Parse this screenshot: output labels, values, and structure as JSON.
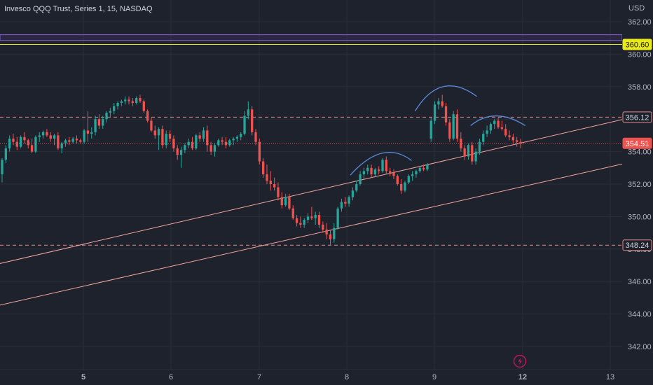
{
  "header": {
    "title": "Invesco QQQ Trust, Series 1, 15, NASDAQ"
  },
  "price_axis": {
    "currency": "USD",
    "ticks": [
      "362.00",
      "360.00",
      "358.00",
      "356.00",
      "354.00",
      "352.00",
      "350.00",
      "348.00",
      "346.00",
      "344.00",
      "342.00"
    ]
  },
  "time_axis": {
    "ticks": [
      "5",
      "6",
      "7",
      "8",
      "9",
      "12",
      "13"
    ]
  },
  "markers": {
    "resistance_label": "360.60",
    "level_upper_label": "356.12",
    "last_price_label": "354.51",
    "level_lower_label": "348.24"
  },
  "colors": {
    "background": "#1e222d",
    "grid": "#2a2e39",
    "up": "#26a69a",
    "down": "#ef5350",
    "channel": "#f4a6a0",
    "dashed_level": "#e58a86",
    "resistance": "#e8e81a",
    "zone": "#7e57c2",
    "arc": "#5b8bd9"
  },
  "icons": {
    "replay": "lightning-icon"
  },
  "chart_data": {
    "type": "candlestick",
    "title": "Invesco QQQ Trust, Series 1, 15, NASDAQ",
    "ylabel": "USD",
    "ylim": [
      341.2,
      363.2
    ],
    "x_ticks": [
      "5",
      "6",
      "7",
      "8",
      "9",
      "12",
      "13"
    ],
    "y_ticks": [
      362,
      360,
      358,
      356,
      354,
      352,
      350,
      348,
      346,
      344,
      342
    ],
    "levels": [
      {
        "kind": "resistance",
        "value": 360.6,
        "style": "solid"
      },
      {
        "kind": "level",
        "value": 356.12,
        "style": "dashed"
      },
      {
        "kind": "last_price",
        "value": 354.51,
        "style": "dotted"
      },
      {
        "kind": "level",
        "value": 348.24,
        "style": "dashed"
      }
    ],
    "zone": {
      "from": 360.85,
      "to": 361.2
    },
    "channel_lines": [
      {
        "start": {
          "time": 3.93,
          "value": 346.96
        },
        "end": {
          "time": 12.95,
          "value": 358.24
        }
      },
      {
        "start": {
          "time": 3.93,
          "value": 344.4
        },
        "end": {
          "time": 12.95,
          "value": 355.46
        }
      }
    ],
    "arcs": [
      {
        "from": {
          "time": 8.04,
          "value": 352.55
        },
        "peak": {
          "time": 8.4,
          "value": 353.9
        },
        "to": {
          "time": 8.74,
          "value": 353.45
        }
      },
      {
        "from": {
          "time": 8.78,
          "value": 356.5
        },
        "peak": {
          "time": 9.1,
          "value": 358.0
        },
        "to": {
          "time": 9.48,
          "value": 357.4
        }
      },
      {
        "from": {
          "time": 9.41,
          "value": 355.6
        },
        "peak": {
          "time": 9.7,
          "value": 356.2
        },
        "to": {
          "time": 10.03,
          "value": 355.6
        }
      }
    ],
    "candles": [
      [
        352.6,
        353.6,
        352.1,
        353.5
      ],
      [
        353.5,
        354.4,
        353.3,
        354.2
      ],
      [
        354.2,
        355.0,
        354.0,
        354.8
      ],
      [
        354.8,
        355.1,
        354.4,
        354.6
      ],
      [
        354.6,
        354.9,
        354.1,
        354.3
      ],
      [
        354.3,
        355.0,
        354.2,
        354.9
      ],
      [
        354.9,
        355.2,
        354.5,
        354.7
      ],
      [
        354.7,
        354.8,
        354.2,
        354.4
      ],
      [
        354.4,
        354.8,
        353.9,
        354.0
      ],
      [
        354.0,
        355.0,
        353.9,
        354.9
      ],
      [
        354.9,
        355.2,
        354.6,
        355.0
      ],
      [
        355.0,
        355.3,
        354.8,
        355.2
      ],
      [
        355.2,
        355.4,
        354.9,
        355.0
      ],
      [
        355.0,
        355.2,
        354.6,
        354.8
      ],
      [
        354.8,
        355.1,
        354.4,
        355.0
      ],
      [
        355.0,
        355.2,
        354.1,
        354.2
      ],
      [
        354.2,
        354.6,
        353.9,
        354.5
      ],
      [
        354.5,
        354.8,
        354.3,
        354.7
      ],
      [
        354.7,
        354.9,
        354.4,
        354.6
      ],
      [
        354.6,
        354.9,
        354.5,
        354.8
      ],
      [
        354.8,
        355.0,
        354.5,
        354.7
      ],
      [
        354.7,
        354.8,
        354.5,
        354.6
      ],
      [
        354.6,
        355.4,
        354.5,
        355.3
      ],
      [
        355.3,
        356.5,
        354.6,
        355.1
      ],
      [
        355.1,
        355.5,
        354.8,
        355.2
      ],
      [
        355.2,
        356.2,
        355.0,
        356.0
      ],
      [
        356.0,
        356.3,
        355.4,
        355.6
      ],
      [
        355.6,
        356.2,
        355.4,
        356.0
      ],
      [
        356.0,
        356.5,
        355.8,
        356.4
      ],
      [
        356.4,
        356.7,
        356.1,
        356.5
      ],
      [
        356.5,
        357.0,
        356.3,
        356.8
      ],
      [
        356.8,
        357.1,
        356.6,
        357.0
      ],
      [
        357.0,
        357.2,
        356.8,
        357.1
      ],
      [
        357.1,
        357.4,
        356.9,
        357.2
      ],
      [
        357.2,
        357.4,
        356.9,
        357.1
      ],
      [
        357.1,
        357.3,
        356.8,
        357.0
      ],
      [
        357.0,
        357.4,
        356.9,
        357.3
      ],
      [
        357.3,
        357.5,
        357.0,
        357.1
      ],
      [
        357.1,
        357.2,
        356.4,
        356.5
      ],
      [
        356.5,
        356.6,
        355.8,
        355.9
      ],
      [
        355.9,
        356.1,
        355.2,
        355.3
      ],
      [
        355.3,
        355.6,
        354.8,
        355.0
      ],
      [
        355.0,
        355.5,
        354.1,
        355.4
      ],
      [
        355.4,
        355.6,
        354.2,
        354.4
      ],
      [
        354.4,
        355.3,
        354.2,
        355.1
      ],
      [
        355.1,
        355.3,
        354.6,
        354.8
      ],
      [
        354.8,
        355.0,
        354.0,
        354.2
      ],
      [
        354.2,
        354.4,
        353.5,
        353.8
      ],
      [
        353.8,
        354.3,
        353.0,
        354.1
      ],
      [
        354.1,
        354.5,
        353.9,
        354.4
      ],
      [
        354.4,
        354.8,
        354.2,
        354.6
      ],
      [
        354.6,
        354.9,
        354.1,
        354.2
      ],
      [
        354.2,
        355.1,
        354.1,
        355.0
      ],
      [
        355.0,
        355.2,
        354.6,
        354.8
      ],
      [
        354.8,
        355.5,
        354.6,
        355.3
      ],
      [
        355.3,
        355.6,
        354.0,
        354.4
      ],
      [
        354.4,
        354.6,
        353.8,
        354.0
      ],
      [
        354.0,
        354.5,
        353.7,
        354.4
      ],
      [
        354.4,
        354.8,
        354.3,
        354.7
      ],
      [
        354.7,
        354.9,
        354.4,
        354.6
      ],
      [
        354.6,
        354.9,
        354.2,
        354.4
      ],
      [
        354.4,
        354.8,
        354.3,
        354.7
      ],
      [
        354.7,
        354.9,
        354.4,
        354.8
      ],
      [
        354.8,
        355.0,
        354.6,
        354.9
      ],
      [
        354.9,
        355.2,
        354.7,
        355.1
      ],
      [
        355.1,
        356.5,
        355.0,
        356.2
      ],
      [
        356.2,
        357.1,
        356.0,
        356.6
      ],
      [
        356.6,
        356.8,
        355.0,
        355.2
      ],
      [
        355.2,
        355.4,
        354.4,
        354.6
      ],
      [
        354.6,
        354.8,
        353.2,
        353.4
      ],
      [
        353.4,
        353.6,
        352.4,
        352.6
      ],
      [
        352.6,
        353.2,
        352.0,
        352.2
      ],
      [
        352.2,
        352.8,
        351.6,
        352.0
      ],
      [
        352.0,
        352.4,
        351.6,
        351.8
      ],
      [
        351.8,
        352.1,
        351.0,
        351.2
      ],
      [
        351.2,
        351.5,
        350.5,
        350.7
      ],
      [
        350.7,
        351.4,
        350.6,
        351.2
      ],
      [
        351.2,
        351.4,
        350.4,
        350.5
      ],
      [
        350.5,
        350.7,
        349.8,
        349.9
      ],
      [
        349.9,
        350.1,
        349.4,
        349.6
      ],
      [
        349.6,
        350.0,
        349.3,
        349.5
      ],
      [
        349.5,
        349.9,
        349.3,
        349.8
      ],
      [
        349.8,
        350.2,
        349.6,
        350.0
      ],
      [
        350.0,
        350.6,
        349.8,
        349.9
      ],
      [
        349.9,
        350.3,
        349.5,
        350.1
      ],
      [
        350.1,
        350.3,
        349.3,
        349.5
      ],
      [
        349.5,
        349.7,
        349.0,
        349.2
      ],
      [
        349.2,
        349.6,
        348.6,
        348.9
      ],
      [
        348.9,
        349.2,
        348.2,
        348.6
      ],
      [
        348.6,
        349.6,
        348.4,
        349.3
      ],
      [
        349.3,
        350.6,
        349.2,
        350.5
      ],
      [
        350.5,
        351.1,
        350.3,
        350.9
      ],
      [
        350.9,
        351.2,
        350.6,
        350.8
      ],
      [
        350.8,
        351.3,
        350.6,
        351.2
      ],
      [
        351.2,
        351.8,
        351.0,
        351.6
      ],
      [
        351.6,
        352.2,
        351.5,
        352.0
      ],
      [
        352.0,
        352.8,
        351.9,
        352.6
      ],
      [
        352.6,
        353.0,
        352.3,
        352.8
      ],
      [
        352.8,
        353.2,
        352.6,
        353.0
      ],
      [
        353.0,
        353.2,
        352.4,
        352.6
      ],
      [
        352.6,
        353.0,
        352.5,
        352.9
      ],
      [
        352.9,
        353.1,
        352.6,
        352.8
      ],
      [
        352.8,
        353.6,
        352.7,
        353.5
      ],
      [
        353.5,
        353.7,
        352.6,
        352.8
      ],
      [
        352.8,
        353.0,
        352.5,
        352.7
      ],
      [
        352.7,
        352.9,
        352.3,
        352.5
      ],
      [
        352.5,
        352.6,
        351.9,
        352.0
      ],
      [
        352.0,
        352.3,
        351.4,
        351.6
      ],
      [
        351.6,
        352.2,
        351.5,
        352.1
      ],
      [
        352.1,
        352.6,
        352.0,
        352.5
      ],
      [
        352.5,
        352.8,
        352.2,
        352.6
      ],
      [
        352.6,
        352.9,
        352.4,
        352.8
      ],
      [
        352.8,
        353.1,
        352.7,
        353.0
      ],
      [
        353.0,
        353.2,
        352.8,
        352.9
      ],
      [
        352.9,
        353.3,
        352.8,
        353.2
      ],
      [
        354.8,
        356.1,
        354.6,
        355.9
      ],
      [
        355.9,
        357.1,
        355.7,
        356.9
      ],
      [
        356.9,
        357.3,
        356.6,
        357.1
      ],
      [
        357.1,
        357.5,
        356.7,
        356.8
      ],
      [
        356.8,
        357.0,
        355.6,
        355.8
      ],
      [
        355.8,
        356.0,
        354.6,
        354.8
      ],
      [
        354.8,
        356.5,
        354.7,
        356.3
      ],
      [
        356.3,
        356.6,
        354.6,
        354.8
      ],
      [
        354.8,
        355.2,
        354.0,
        354.2
      ],
      [
        354.2,
        354.4,
        353.5,
        353.7
      ],
      [
        353.7,
        354.5,
        353.5,
        354.4
      ],
      [
        354.4,
        354.6,
        353.2,
        353.4
      ],
      [
        353.4,
        354.2,
        353.2,
        354.0
      ],
      [
        354.0,
        354.8,
        353.8,
        354.6
      ],
      [
        354.6,
        355.3,
        354.4,
        355.1
      ],
      [
        355.1,
        355.6,
        354.9,
        355.3
      ],
      [
        355.3,
        355.8,
        355.1,
        355.7
      ],
      [
        355.7,
        356.0,
        355.4,
        355.9
      ],
      [
        355.9,
        356.1,
        355.4,
        355.5
      ],
      [
        355.5,
        355.9,
        355.3,
        355.4
      ],
      [
        355.4,
        355.7,
        354.9,
        355.0
      ],
      [
        355.0,
        355.3,
        354.7,
        354.9
      ],
      [
        354.9,
        355.1,
        354.5,
        354.7
      ],
      [
        354.7,
        354.9,
        354.3,
        354.6
      ],
      [
        354.6,
        354.8,
        354.2,
        354.51
      ]
    ]
  }
}
